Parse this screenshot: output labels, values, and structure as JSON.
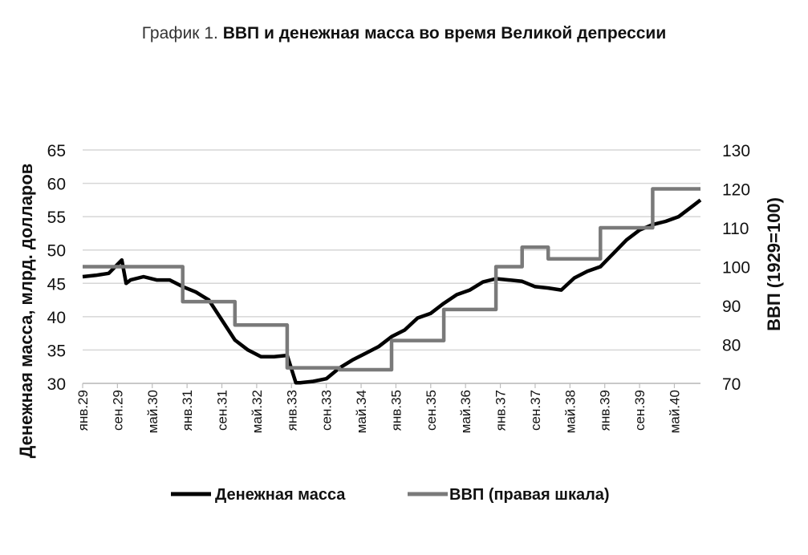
{
  "title": {
    "prefix": "График 1.",
    "main": "ВВП и денежная масса во время Великой депрессии"
  },
  "chart_data": {
    "type": "line",
    "ylabel": "Денежная масса, млрд. долларов",
    "y2label": "ВВП (1929=100)",
    "ylim": [
      30,
      65
    ],
    "y_ticks": [
      30,
      35,
      40,
      45,
      50,
      55,
      60,
      65
    ],
    "y2lim": [
      70,
      130
    ],
    "y2_ticks": [
      70,
      80,
      90,
      100,
      110,
      120,
      130
    ],
    "x_tick_labels": [
      "янв.29",
      "сен.29",
      "май.30",
      "янв.31",
      "сен.31",
      "май.32",
      "янв.33",
      "сен.33",
      "май.34",
      "янв.35",
      "сен.35",
      "май.36",
      "янв.37",
      "сен.37",
      "май.38",
      "янв.39",
      "сен.39",
      "май.40"
    ],
    "x_tick_step_months": 8,
    "grid": "horizontal",
    "legend_position": "bottom",
    "series": [
      {
        "name": "Денежная масса",
        "axis": "left",
        "color": "#000000",
        "x": [
          "1929-01",
          "1929-04",
          "1929-07",
          "1929-10",
          "1929-11",
          "1929-12",
          "1930-03",
          "1930-06",
          "1930-09",
          "1930-12",
          "1931-03",
          "1931-06",
          "1931-09",
          "1931-12",
          "1932-03",
          "1932-06",
          "1932-09",
          "1932-12",
          "1933-02",
          "1933-03",
          "1933-06",
          "1933-09",
          "1933-12",
          "1934-03",
          "1934-06",
          "1934-09",
          "1934-12",
          "1935-03",
          "1935-06",
          "1935-09",
          "1935-12",
          "1936-03",
          "1936-06",
          "1936-09",
          "1936-12",
          "1937-03",
          "1937-06",
          "1937-09",
          "1937-12",
          "1938-03",
          "1938-06",
          "1938-09",
          "1938-12",
          "1939-03",
          "1939-06",
          "1939-09",
          "1939-12",
          "1940-03",
          "1940-06",
          "1940-09",
          "1940-11"
        ],
        "values": [
          46,
          46.2,
          46.5,
          48.5,
          45,
          45.5,
          46,
          45.5,
          45.5,
          44.5,
          43.7,
          42.5,
          39.5,
          36.5,
          35,
          34,
          34,
          34.2,
          30.1,
          30.1,
          30.3,
          30.7,
          32.3,
          33.5,
          34.5,
          35.5,
          37,
          38,
          39.8,
          40.5,
          42,
          43.3,
          44,
          45.2,
          45.7,
          45.5,
          45.3,
          44.5,
          44.3,
          44,
          45.8,
          46.8,
          47.5,
          49.5,
          51.5,
          53,
          53.8,
          54.3,
          55,
          56.5,
          57.5
        ]
      },
      {
        "name": "ВВП (правая шкала)",
        "axis": "right",
        "color": "#7a7a7a",
        "x": [
          "1929-01",
          "1929-12",
          "1930-12",
          "1931-12",
          "1932-12",
          "1933-12",
          "1934-12",
          "1935-12",
          "1936-12",
          "1937-06",
          "1937-12",
          "1938-12",
          "1939-12",
          "1940-11"
        ],
        "values": [
          100,
          100,
          91,
          85,
          74,
          73.5,
          81,
          89,
          100,
          105,
          102,
          110,
          120,
          120
        ],
        "step": true
      }
    ]
  }
}
